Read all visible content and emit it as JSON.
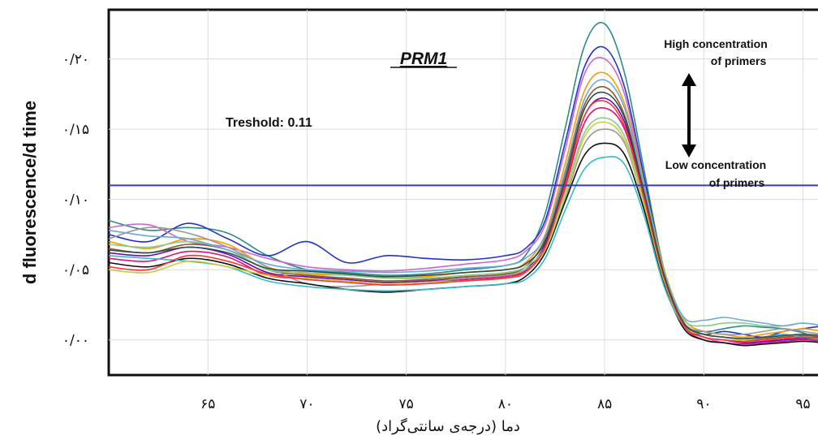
{
  "chart_data": {
    "type": "line",
    "title": "PRM1",
    "xlabel": "دما (درجه‌ی سانتی‌گراد)",
    "ylabel": "d fluorescence/d time",
    "xlim": [
      60,
      96
    ],
    "ylim": [
      -0.025,
      0.235
    ],
    "xticks": [
      65,
      70,
      75,
      80,
      85,
      90,
      95
    ],
    "xtick_labels": [
      "۶۵",
      "۷۰",
      "۷۵",
      "۸۰",
      "۸۵",
      "۹۰",
      "۹۵"
    ],
    "yticks": [
      0.0,
      0.05,
      0.1,
      0.15,
      0.2
    ],
    "ytick_labels": [
      "۰/۰۰",
      "۰/۰۵",
      "۰/۱۰",
      "۰/۱۵",
      "۰/۲۰"
    ],
    "grid": true,
    "threshold": {
      "label": "Treshold: 0.11",
      "value": 0.11,
      "color": "#3b3bb3"
    },
    "annotations": {
      "high": [
        "High concentration",
        "of primers"
      ],
      "low": [
        "Low concentration",
        "of primers"
      ]
    },
    "x": [
      60,
      62,
      64,
      66,
      68,
      70,
      72,
      74,
      76,
      78,
      80,
      81,
      82,
      83,
      84,
      85,
      86,
      87,
      88,
      89,
      90,
      91,
      92,
      93,
      94,
      95,
      96
    ],
    "series": [
      {
        "color": "#2e8b8b",
        "values": [
          0.085,
          0.078,
          0.08,
          0.076,
          0.06,
          0.05,
          0.048,
          0.046,
          0.047,
          0.05,
          0.053,
          0.06,
          0.09,
          0.15,
          0.21,
          0.225,
          0.19,
          0.12,
          0.05,
          0.012,
          0.006,
          0.008,
          0.01,
          0.009,
          0.008,
          0.005,
          0.0
        ]
      },
      {
        "color": "#2233cc",
        "values": [
          0.075,
          0.07,
          0.083,
          0.072,
          0.06,
          0.07,
          0.055,
          0.06,
          0.058,
          0.057,
          0.06,
          0.065,
          0.085,
          0.14,
          0.195,
          0.208,
          0.18,
          0.115,
          0.048,
          0.01,
          0.004,
          0.006,
          0.004,
          0.002,
          0.006,
          0.008,
          0.01
        ]
      },
      {
        "color": "#cc66cc",
        "values": [
          0.08,
          0.082,
          0.07,
          0.066,
          0.058,
          0.052,
          0.05,
          0.049,
          0.051,
          0.054,
          0.057,
          0.063,
          0.082,
          0.135,
          0.19,
          0.2,
          0.175,
          0.11,
          0.045,
          0.01,
          0.002,
          -0.002,
          -0.003,
          -0.002,
          0.0,
          0.001,
          0.0
        ]
      },
      {
        "color": "#ff9900",
        "values": [
          0.07,
          0.065,
          0.072,
          0.068,
          0.052,
          0.047,
          0.046,
          0.044,
          0.045,
          0.048,
          0.05,
          0.055,
          0.075,
          0.125,
          0.178,
          0.19,
          0.168,
          0.11,
          0.05,
          0.015,
          0.006,
          0.004,
          0.002,
          0.004,
          0.006,
          0.008,
          0.006
        ]
      },
      {
        "color": "#8b5a2b",
        "values": [
          0.065,
          0.062,
          0.068,
          0.064,
          0.05,
          0.046,
          0.044,
          0.042,
          0.043,
          0.045,
          0.047,
          0.052,
          0.072,
          0.118,
          0.168,
          0.18,
          0.16,
          0.105,
          0.046,
          0.012,
          0.004,
          0.002,
          0.0,
          0.001,
          0.002,
          0.003,
          0.002
        ]
      },
      {
        "color": "#6a0dad",
        "values": [
          0.062,
          0.06,
          0.066,
          0.061,
          0.048,
          0.045,
          0.043,
          0.041,
          0.042,
          0.044,
          0.046,
          0.05,
          0.068,
          0.112,
          0.16,
          0.172,
          0.155,
          0.103,
          0.045,
          0.011,
          0.002,
          0.0,
          -0.002,
          -0.001,
          0.0,
          0.001,
          0.0
        ]
      },
      {
        "color": "#dd1177",
        "values": [
          0.058,
          0.056,
          0.063,
          0.059,
          0.046,
          0.044,
          0.042,
          0.04,
          0.041,
          0.043,
          0.045,
          0.049,
          0.066,
          0.108,
          0.155,
          0.165,
          0.15,
          0.1,
          0.044,
          0.01,
          0.0,
          -0.002,
          -0.003,
          -0.002,
          -0.001,
          0.0,
          -0.001
        ]
      },
      {
        "color": "#88cc88",
        "values": [
          0.068,
          0.066,
          0.07,
          0.064,
          0.05,
          0.048,
          0.046,
          0.044,
          0.044,
          0.046,
          0.048,
          0.052,
          0.066,
          0.105,
          0.148,
          0.158,
          0.145,
          0.098,
          0.044,
          0.014,
          0.01,
          0.012,
          0.012,
          0.01,
          0.01,
          0.012,
          0.01
        ]
      },
      {
        "color": "#999999",
        "values": [
          0.072,
          0.08,
          0.076,
          0.066,
          0.052,
          0.04,
          0.038,
          0.04,
          0.041,
          0.044,
          0.046,
          0.05,
          0.064,
          0.1,
          0.14,
          0.15,
          0.14,
          0.095,
          0.042,
          0.012,
          0.006,
          0.004,
          0.004,
          0.006,
          0.008,
          0.006,
          0.004
        ]
      },
      {
        "color": "#111111",
        "values": [
          0.055,
          0.052,
          0.058,
          0.054,
          0.044,
          0.04,
          0.036,
          0.034,
          0.036,
          0.038,
          0.04,
          0.045,
          0.062,
          0.098,
          0.132,
          0.14,
          0.132,
          0.092,
          0.04,
          0.008,
          0.0,
          -0.002,
          -0.004,
          -0.003,
          -0.002,
          -0.001,
          -0.002
        ]
      },
      {
        "color": "#33bbcc",
        "values": [
          0.06,
          0.058,
          0.056,
          0.052,
          0.042,
          0.038,
          0.036,
          0.035,
          0.036,
          0.038,
          0.04,
          0.043,
          0.058,
          0.092,
          0.122,
          0.13,
          0.125,
          0.088,
          0.038,
          0.01,
          0.004,
          0.002,
          0.0,
          0.002,
          0.004,
          0.002,
          0.0
        ]
      },
      {
        "color": "#cccc44",
        "values": [
          0.05,
          0.048,
          0.056,
          0.052,
          0.046,
          0.044,
          0.042,
          0.04,
          0.041,
          0.042,
          0.044,
          0.048,
          0.064,
          0.102,
          0.145,
          0.155,
          0.142,
          0.096,
          0.042,
          0.01,
          0.004,
          0.002,
          0.0,
          0.002,
          0.003,
          0.004,
          0.003
        ]
      },
      {
        "color": "#ff3333",
        "values": [
          0.052,
          0.05,
          0.06,
          0.056,
          0.047,
          0.043,
          0.041,
          0.039,
          0.04,
          0.042,
          0.044,
          0.048,
          0.066,
          0.11,
          0.16,
          0.17,
          0.152,
          0.1,
          0.044,
          0.01,
          0.002,
          0.0,
          -0.001,
          0.0,
          0.001,
          0.002,
          0.001
        ]
      },
      {
        "color": "#66aadd",
        "values": [
          0.078,
          0.074,
          0.072,
          0.064,
          0.054,
          0.05,
          0.049,
          0.048,
          0.049,
          0.051,
          0.053,
          0.058,
          0.074,
          0.12,
          0.172,
          0.185,
          0.165,
          0.108,
          0.048,
          0.016,
          0.014,
          0.016,
          0.014,
          0.012,
          0.01,
          0.012,
          0.01
        ]
      },
      {
        "color": "#2f4f4f",
        "values": [
          0.064,
          0.062,
          0.066,
          0.062,
          0.051,
          0.049,
          0.047,
          0.045,
          0.046,
          0.048,
          0.05,
          0.054,
          0.07,
          0.114,
          0.165,
          0.176,
          0.158,
          0.104,
          0.046,
          0.012,
          0.004,
          0.002,
          0.001,
          0.002,
          0.003,
          0.004,
          0.003
        ]
      }
    ]
  }
}
